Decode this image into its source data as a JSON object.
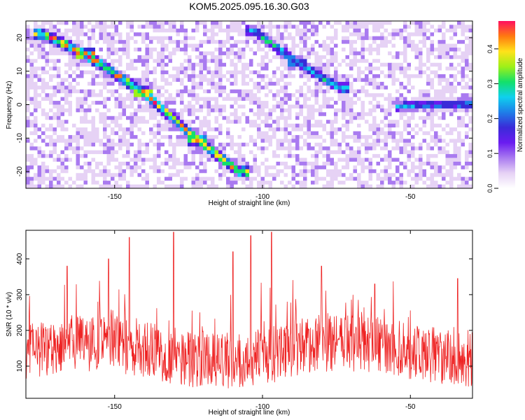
{
  "title": "KOM5.2025.095.16.30.G03",
  "colors": {
    "signal_line": "#ee2222",
    "frame": "#000000",
    "colormap": [
      "#ffffff",
      "#e6d2f5",
      "#a97af0",
      "#6a1cf0",
      "#3a2bd8",
      "#1e7fe8",
      "#0fd0ee",
      "#12e06a",
      "#9ef018",
      "#ffe21a",
      "#ff7a10",
      "#ff1060"
    ]
  },
  "chart_data": [
    {
      "type": "heatmap",
      "xlabel": "Height of straight line (km)",
      "ylabel": "Frequency (Hz)",
      "xlim": [
        -180,
        -29
      ],
      "ylim": [
        -25,
        25
      ],
      "xticks": [
        -150,
        -100,
        -50
      ],
      "yticks": [
        -20,
        -10,
        0,
        10,
        20
      ],
      "colorbar": {
        "label": "Normalized spectral amplitude",
        "range": [
          0.0,
          0.48
        ],
        "ticks": [
          "0.0",
          "0.1",
          "0.2",
          "0.3",
          "0.4"
        ]
      },
      "ridges": [
        {
          "x": [
            -174,
            -160,
            -140,
            -122,
            -108
          ],
          "y": [
            21,
            15,
            3.5,
            -10.5,
            -20
          ],
          "peak": 0.48
        },
        {
          "x": [
            -103,
            -88,
            -74
          ],
          "y": [
            22,
            12.5,
            5
          ],
          "peak": 0.33
        },
        {
          "x": [
            -52,
            -30
          ],
          "y": [
            -0.5,
            0.3
          ],
          "peak": 0.27
        }
      ],
      "grid": false
    },
    {
      "type": "line",
      "xlabel": "Height of straight line (km)",
      "ylabel": "SNR (10 * v/v)",
      "xlim": [
        -180,
        -29
      ],
      "ylim": [
        10,
        480
      ],
      "xticks": [
        -150,
        -100,
        -50
      ],
      "yticks": [
        100,
        200,
        300,
        400
      ],
      "mean_level": 140,
      "peaks": [
        {
          "x": -166,
          "y": 380
        },
        {
          "x": -152,
          "y": 400
        },
        {
          "x": -145,
          "y": 460
        },
        {
          "x": -130,
          "y": 475
        },
        {
          "x": -110,
          "y": 420
        },
        {
          "x": -104,
          "y": 465
        },
        {
          "x": -97,
          "y": 475
        },
        {
          "x": -80,
          "y": 380
        },
        {
          "x": -62,
          "y": 330
        },
        {
          "x": -34,
          "y": 345
        }
      ],
      "grid": false
    }
  ]
}
